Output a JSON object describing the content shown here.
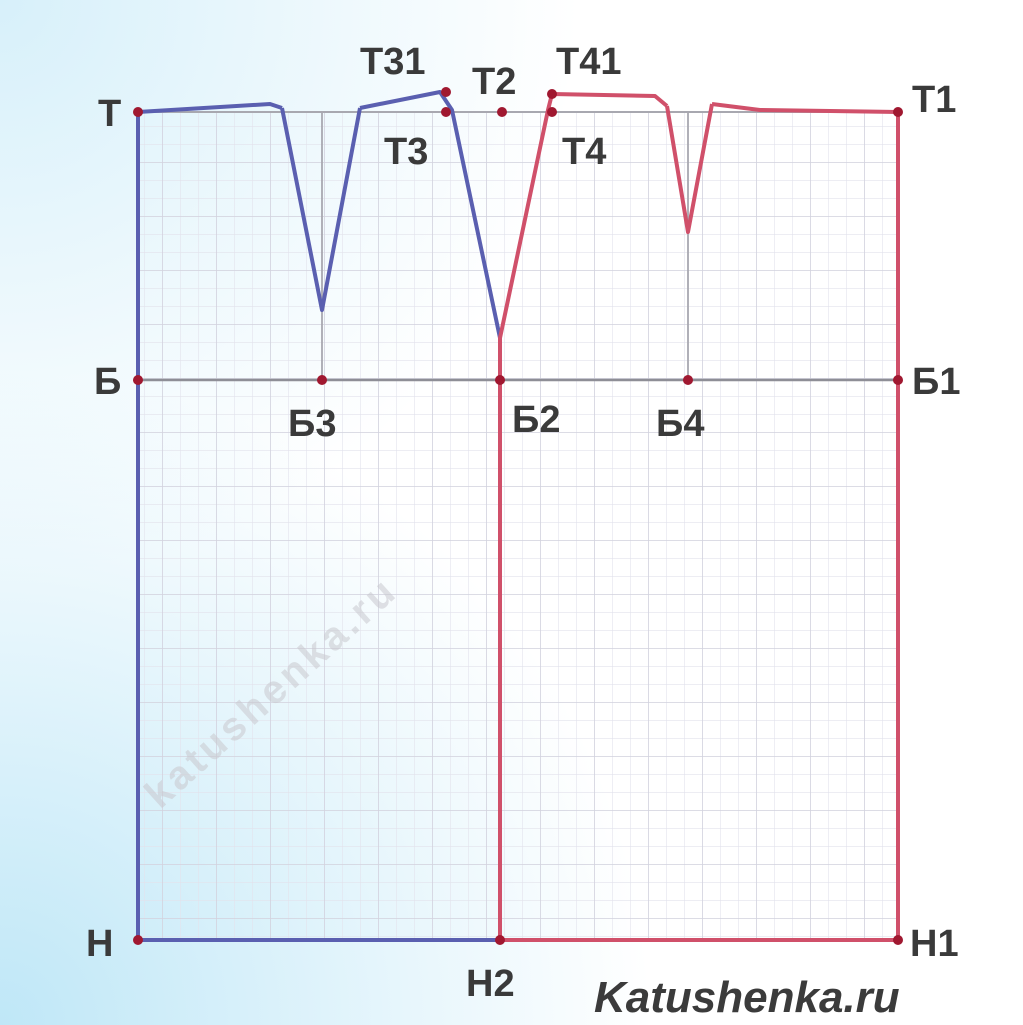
{
  "labels": {
    "T": "Т",
    "T1": "Т1",
    "T2": "Т2",
    "T3": "Т3",
    "T31": "Т31",
    "T4": "Т4",
    "T41": "Т41",
    "B": "Б",
    "B1": "Б1",
    "B2": "Б2",
    "B3": "Б3",
    "B4": "Б4",
    "H": "Н",
    "H1": "Н1",
    "H2": "Н2"
  },
  "watermark": "katushenka.ru",
  "brand": "Katushenka.ru",
  "colors": {
    "back_piece": "#5a5fb0",
    "front_piece": "#d0506a",
    "grid": "#dcdce6",
    "guide": "#9a9aa2",
    "point": "#a01830"
  }
}
